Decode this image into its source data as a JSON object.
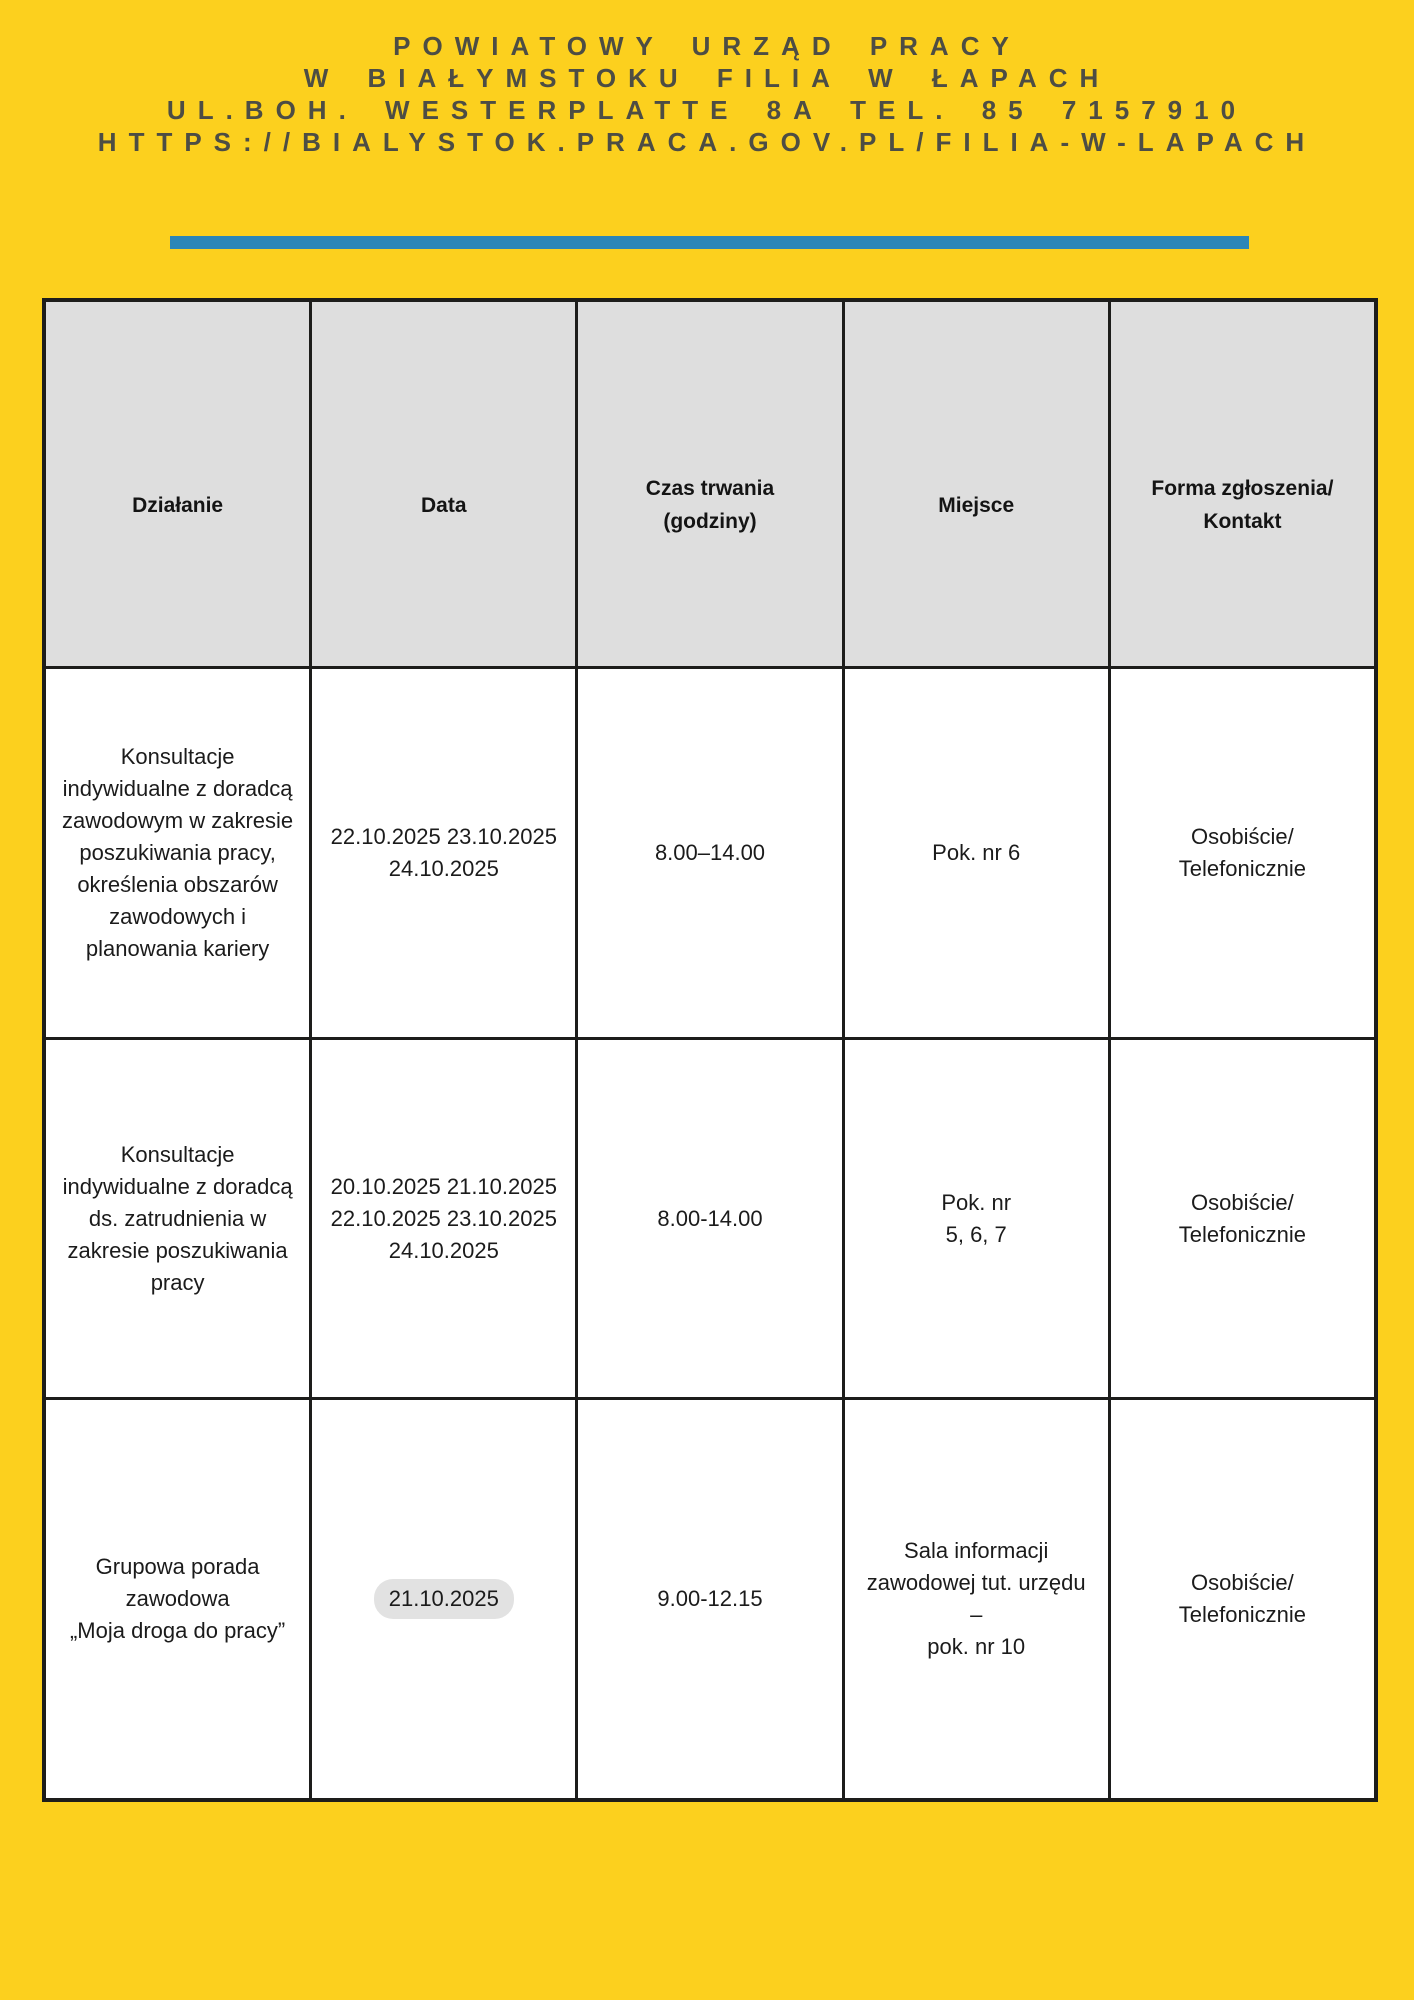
{
  "page": {
    "background_color": "#FCD01E",
    "divider_color": "#2B86B8",
    "header_text_color": "#4D4D44",
    "table_border_color": "#1D1D1B",
    "table_header_bg": "#DEDEDE",
    "date_highlight_bg": "#E2E2E2"
  },
  "org_header": {
    "line1": "POWIATOWY URZĄD PRACY",
    "line2": "W BIAŁYMSTOKU FILIA W ŁAPACH",
    "line3": "UL.BOH. WESTERPLATTE 8A TEL. 85 7157910",
    "line4": "HTTPS://BIALYSTOK.PRACA.GOV.PL/FILIA-W-LAPACH"
  },
  "table": {
    "columns": [
      "Działanie",
      "Data",
      "Czas trwania\n(godziny)",
      "Miejsce",
      "Forma zgłoszenia/\nKontakt"
    ],
    "rows": [
      {
        "activity": "Konsultacje\nindywidualne z doradcą\nzawodowym w zakresie\nposzukiwania pracy,\nokreślenia obszarów\nzawodowych i\nplanowania kariery",
        "date": "22.10.2025 23.10.2025\n24.10.2025",
        "time": "8.00–14.00",
        "place": "Pok. nr 6",
        "contact": "Osobiście/\nTelefonicznie"
      },
      {
        "activity": "Konsultacje\nindywidualne z doradcą\nds. zatrudnienia w\nzakresie poszukiwania\npracy",
        "date": "20.10.2025 21.10.2025\n22.10.2025 23.10.2025\n24.10.2025",
        "time": "8.00-14.00",
        "place": "Pok. nr\n5, 6, 7",
        "contact": "Osobiście/\nTelefonicznie"
      },
      {
        "activity": "Grupowa porada\nzawodowa\n„Moja droga do pracy”",
        "date": "21.10.2025",
        "time": "9.00-12.15",
        "place": "Sala informacji\nzawodowej tut. urzędu\n–\npok. nr 10",
        "contact": "Osobiście/\nTelefonicznie"
      }
    ]
  }
}
